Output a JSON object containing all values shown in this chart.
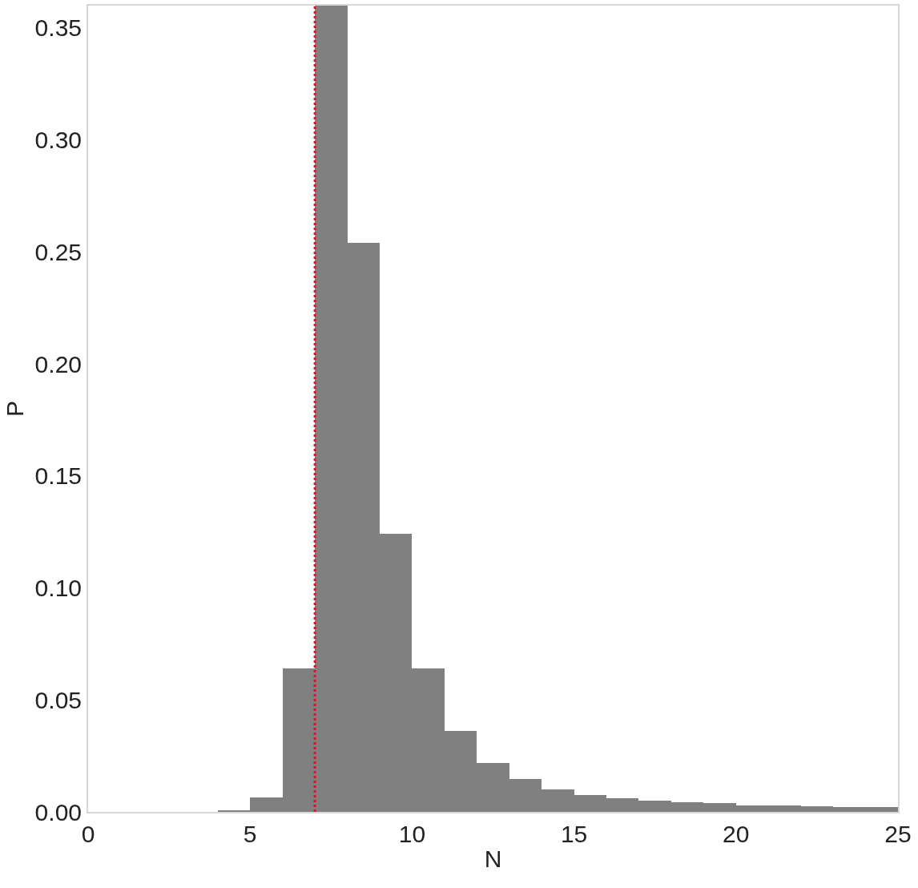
{
  "chart_data": {
    "type": "histogram",
    "xlabel": "N",
    "ylabel": "P",
    "bins": [
      0,
      1,
      2,
      3,
      4,
      5,
      6,
      7,
      8,
      9,
      10,
      11,
      12,
      13,
      14,
      15,
      16,
      17,
      18,
      19,
      20,
      21,
      22,
      23,
      24,
      25
    ],
    "values": [
      0,
      0,
      0,
      0,
      0.0005,
      0.0065,
      0.064,
      0.36,
      0.254,
      0.124,
      0.064,
      0.036,
      0.022,
      0.0148,
      0.01,
      0.0075,
      0.006,
      0.005,
      0.0043,
      0.004,
      0.003,
      0.0028,
      0.0025,
      0.0022,
      0.002
    ],
    "color": "#808080",
    "xlim": [
      0,
      25
    ],
    "xticks": [
      0,
      5,
      10,
      15,
      20,
      25
    ],
    "ylim": [
      0,
      0.36
    ],
    "yticks": [
      {
        "value": 0,
        "label": "0.00"
      },
      {
        "value": 0.05,
        "label": "0.05"
      },
      {
        "value": 0.1,
        "label": "0.10"
      },
      {
        "value": 0.15,
        "label": "0.15"
      },
      {
        "value": 0.2,
        "label": "0.20"
      },
      {
        "value": 0.25,
        "label": "0.25"
      },
      {
        "value": 0.3,
        "label": "0.30"
      },
      {
        "value": 0.35,
        "label": "0.35"
      }
    ],
    "ref_lines": [
      {
        "axis": "x",
        "value": 7,
        "color": "#e0102a",
        "line_style": "dotted"
      }
    ]
  }
}
